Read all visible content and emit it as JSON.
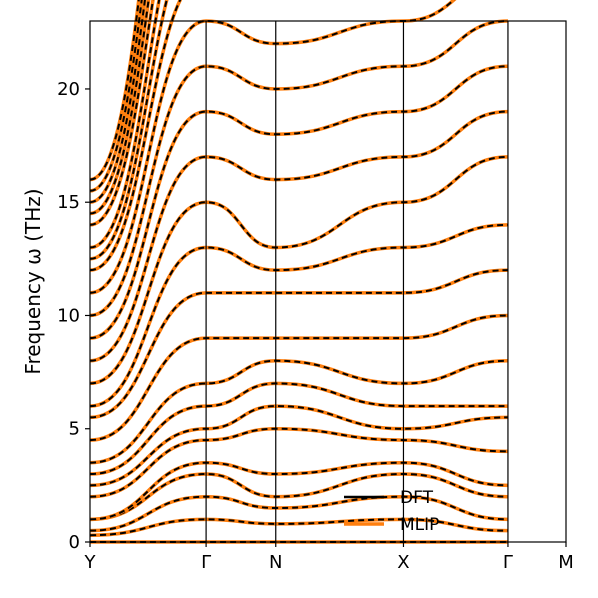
{
  "chart_data": {
    "type": "line",
    "title": "",
    "xlabel": "",
    "ylabel": "Frequency ω (THz)",
    "ylim": [
      0,
      23
    ],
    "yticks": [
      0,
      5,
      10,
      15,
      20
    ],
    "grid": false,
    "legend_position": "bottom-right",
    "kpath": {
      "labels": [
        "Y",
        "Γ",
        "N",
        "X",
        "Γ",
        "M"
      ],
      "positions": [
        0,
        1,
        1.6,
        2.7,
        3.6,
        4.1
      ]
    },
    "series": [
      {
        "name": "DFT",
        "color": "#000000",
        "style": "dashed"
      },
      {
        "name": "MLIP",
        "color": "#ff7f0e",
        "style": "solid"
      }
    ],
    "bands": [
      [
        0,
        0,
        0,
        0,
        0
      ],
      [
        0.03,
        0.1,
        0.08,
        0.1,
        0.05
      ],
      [
        0.05,
        0.2,
        0.15,
        0.2,
        0.1
      ],
      [
        0.1,
        0.3,
        0.2,
        0.3,
        0.2
      ],
      [
        0.1,
        0.35,
        0.3,
        0.35,
        0.25
      ],
      [
        0.2,
        0.45,
        0.5,
        0.45,
        0.4
      ],
      [
        0.25,
        0.5,
        0.6,
        0.5,
        0.55
      ],
      [
        0.3,
        0.6,
        0.7,
        0.6,
        0.6
      ],
      [
        0.35,
        0.7,
        0.8,
        0.7,
        0.8
      ],
      [
        0.45,
        0.9,
        0.9,
        0.9,
        1.0
      ],
      [
        0.55,
        1.1,
        1.1,
        1.1,
        1.2
      ],
      [
        0.6,
        1.3,
        1.2,
        1.3,
        1.4
      ],
      [
        0.7,
        1.5,
        1.3,
        1.5,
        1.7
      ],
      [
        0.8,
        1.7,
        1.6,
        1.7,
        1.9
      ],
      [
        0.9,
        1.9,
        1.8,
        1.9,
        2.1
      ],
      [
        1.0,
        2.1,
        2.0,
        2.1,
        2.3
      ],
      [
        1.1,
        2.3,
        2.2,
        2.3,
        2.5
      ],
      [
        1.2,
        2.5,
        2.5,
        2.5,
        2.7
      ],
      [
        1.25,
        2.7,
        2.8,
        2.7,
        3.0
      ],
      [
        1.3,
        2.9,
        3.0,
        2.9,
        3.2
      ],
      [
        1.4,
        3.1,
        3.1,
        3.1,
        3.4
      ],
      [
        1.45,
        3.3,
        3.3,
        3.3,
        3.6
      ],
      [
        1.5,
        3.5,
        3.5,
        3.5,
        3.8
      ],
      [
        1.55,
        3.7,
        3.7,
        3.7,
        4.0
      ],
      [
        1.6,
        3.9,
        4.0,
        3.9,
        4.1
      ]
    ]
  },
  "legend": {
    "dft": "DFT",
    "mlip": "MLIP"
  }
}
